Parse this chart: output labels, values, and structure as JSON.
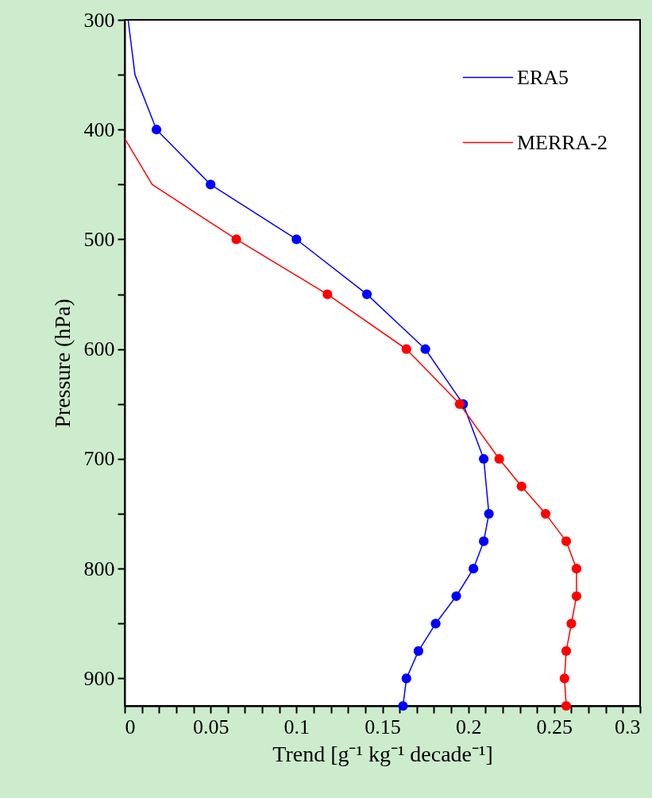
{
  "chart_data": {
    "type": "line",
    "xlabel": "Trend [g⁻¹ kg⁻¹ decade⁻¹]",
    "ylabel": "Pressure (hPa)",
    "xlim": [
      0,
      0.3
    ],
    "ylim": [
      925,
      300
    ],
    "xticks": [
      0,
      {
        "value": 0.01,
        "label": null
      },
      {
        "value": 0.02,
        "label": null
      },
      {
        "value": 0.03,
        "label": null
      },
      {
        "value": 0.04,
        "label": null
      },
      0.05,
      {
        "value": 0.06,
        "label": null
      },
      {
        "value": 0.07,
        "label": null
      },
      {
        "value": 0.08,
        "label": null
      },
      {
        "value": 0.09,
        "label": null
      },
      0.1,
      {
        "value": 0.11,
        "label": null
      },
      {
        "value": 0.12,
        "label": null
      },
      {
        "value": 0.13,
        "label": null
      },
      {
        "value": 0.14,
        "label": null
      },
      0.15,
      {
        "value": 0.16,
        "label": null
      },
      {
        "value": 0.17,
        "label": null
      },
      {
        "value": 0.18,
        "label": null
      },
      {
        "value": 0.19,
        "label": null
      },
      0.2,
      {
        "value": 0.21,
        "label": null
      },
      {
        "value": 0.22,
        "label": null
      },
      {
        "value": 0.23,
        "label": null
      },
      {
        "value": 0.24,
        "label": null
      },
      0.25,
      {
        "value": 0.26,
        "label": null
      },
      {
        "value": 0.27,
        "label": null
      },
      {
        "value": 0.28,
        "label": null
      },
      {
        "value": 0.29,
        "label": null
      },
      0.3
    ],
    "yticks": [
      300,
      {
        "value": 350,
        "label": null
      },
      400,
      {
        "value": 450,
        "label": null
      },
      500,
      {
        "value": 550,
        "label": null
      },
      600,
      {
        "value": 650,
        "label": null
      },
      700,
      {
        "value": 750,
        "label": null
      },
      800,
      {
        "value": 850,
        "label": null
      },
      900
    ],
    "grid": false,
    "legend": "top right",
    "series": [
      {
        "name": "ERA5",
        "color": "#0000ff",
        "marker": "none",
        "x": [
          0.002,
          0.006,
          0.0185,
          0.05,
          0.1,
          0.141,
          0.175,
          0.197,
          0.209,
          0.212,
          0.209,
          0.203,
          0.193,
          0.181,
          0.171,
          0.164,
          0.162
        ],
        "values": [
          300,
          350,
          400,
          450,
          500,
          550,
          600,
          650,
          700,
          750,
          775,
          800,
          825,
          850,
          875,
          900,
          925
        ]
      },
      {
        "name": "MERRA-2",
        "color": "#ff0000",
        "marker": "none",
        "x": [
          0,
          0.016,
          0.065,
          0.118,
          0.164,
          0.195,
          0.218,
          0.231,
          0.245,
          0.257,
          0.263,
          0.263,
          0.26,
          0.257,
          0.256,
          0.257
        ],
        "values": [
          408,
          450,
          500,
          550,
          600,
          650,
          700,
          725,
          750,
          775,
          800,
          825,
          850,
          875,
          900,
          925
        ]
      },
      {
        "type": "scatter",
        "color": "#0000ff",
        "marker": "circle",
        "x": [
          0.0185,
          0.05,
          0.1,
          0.141,
          0.175,
          0.197,
          0.209,
          0.212,
          0.209,
          0.203,
          0.193,
          0.181,
          0.171,
          0.164,
          0.162
        ],
        "values": [
          400,
          450,
          500,
          550,
          600,
          650,
          700,
          750,
          775,
          800,
          825,
          850,
          875,
          900,
          925
        ]
      },
      {
        "type": "scatter",
        "color": "#ff0000",
        "marker": "circle",
        "x": [
          0.065,
          0.118,
          0.164,
          0.195,
          0.218,
          0.231,
          0.245,
          0.257,
          0.263,
          0.263,
          0.26,
          0.257,
          0.256,
          0.257
        ],
        "values": [
          500,
          550,
          600,
          650,
          700,
          725,
          750,
          775,
          800,
          825,
          850,
          875,
          900,
          925
        ]
      }
    ]
  }
}
